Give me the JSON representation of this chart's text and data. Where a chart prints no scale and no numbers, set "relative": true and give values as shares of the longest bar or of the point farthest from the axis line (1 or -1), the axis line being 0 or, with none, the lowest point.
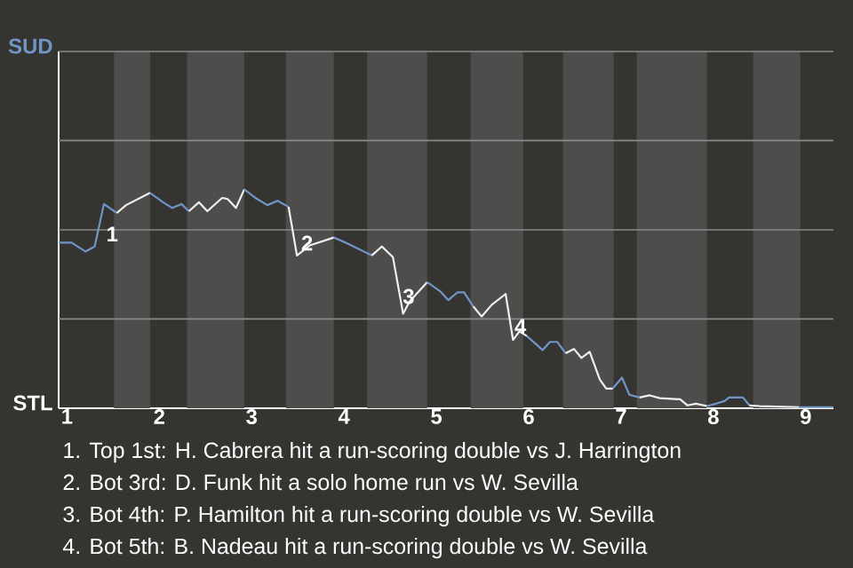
{
  "chart_data": {
    "type": "line",
    "relative": true,
    "xlim": [
      0.91,
      9.3
    ],
    "xticks": [
      {
        "value": 1,
        "label": "1"
      },
      {
        "value": 2,
        "label": "2"
      },
      {
        "value": 3,
        "label": "3"
      },
      {
        "value": 4,
        "label": "4"
      },
      {
        "value": 5,
        "label": "5"
      },
      {
        "value": 6,
        "label": "6"
      },
      {
        "value": 7,
        "label": "7"
      },
      {
        "value": 8,
        "label": "8"
      },
      {
        "value": 9,
        "label": "9"
      }
    ],
    "ref_lines": [
      {
        "axis": "y",
        "value": 0.408,
        "color": "#8a8a8a"
      },
      {
        "axis": "y",
        "value": 0.815,
        "color": "#8a8a8a"
      },
      {
        "axis": "y",
        "value": 1.223,
        "color": "#8a8a8a"
      },
      {
        "axis": "y",
        "value": 1.63,
        "color": "#8a8a8a"
      }
    ],
    "bands": [
      {
        "axis": "x",
        "from": 1.51,
        "to": 1.9,
        "color": "#4e4d4b"
      },
      {
        "axis": "x",
        "from": 2.3,
        "to": 2.92,
        "color": "#4e4d4b"
      },
      {
        "axis": "x",
        "from": 3.37,
        "to": 3.89,
        "color": "#4e4d4b"
      },
      {
        "axis": "x",
        "from": 4.25,
        "to": 4.9,
        "color": "#4e4d4b"
      },
      {
        "axis": "x",
        "from": 5.37,
        "to": 5.94,
        "color": "#4e4d4b"
      },
      {
        "axis": "x",
        "from": 6.37,
        "to": 6.92,
        "color": "#4e4d4b"
      },
      {
        "axis": "x",
        "from": 7.17,
        "to": 7.93,
        "color": "#4e4d4b"
      },
      {
        "axis": "x",
        "from": 8.43,
        "to": 8.94,
        "color": "#4e4d4b"
      }
    ],
    "series": [
      {
        "color": "#7096c8",
        "x": [
          0.91,
          1.05,
          1.2,
          1.3,
          1.4,
          1.54
        ],
        "values": [
          0.757,
          0.757,
          0.716,
          0.739,
          0.933,
          0.892
        ]
      },
      {
        "color": "#f0f0f0",
        "x": [
          1.54,
          1.64,
          1.9
        ],
        "values": [
          0.892,
          0.928,
          0.984
        ]
      },
      {
        "color": "#7096c8",
        "x": [
          1.9,
          2.04,
          2.14,
          2.24,
          2.32
        ],
        "values": [
          0.984,
          0.941,
          0.915,
          0.933,
          0.9
        ]
      },
      {
        "color": "#f0f0f0",
        "x": [
          2.32,
          2.43,
          2.52,
          2.68,
          2.74,
          2.83,
          2.92
        ],
        "values": [
          0.9,
          0.941,
          0.9,
          0.961,
          0.956,
          0.915,
          1
        ]
      },
      {
        "color": "#7096c8",
        "x": [
          2.92,
          3.04,
          3.17,
          3.28,
          3.4
        ],
        "values": [
          1,
          0.961,
          0.928,
          0.948,
          0.92
        ]
      },
      {
        "color": "#f0f0f0",
        "x": [
          3.4,
          3.49,
          3.63,
          3.89
        ],
        "values": [
          0.92,
          0.698,
          0.744,
          0.78
        ]
      },
      {
        "color": "#7096c8",
        "x": [
          3.89,
          4.04,
          4.3
        ],
        "values": [
          0.78,
          0.752,
          0.698
        ]
      },
      {
        "color": "#f0f0f0",
        "x": [
          4.3,
          4.41,
          4.53,
          4.64,
          4.71,
          4.9
        ],
        "values": [
          0.698,
          0.739,
          0.69,
          0.432,
          0.488,
          0.576
        ]
      },
      {
        "color": "#7096c8",
        "x": [
          4.9,
          5.04,
          5.13,
          5.23,
          5.3,
          5.4
        ],
        "values": [
          0.576,
          0.535,
          0.494,
          0.53,
          0.53,
          0.465
        ]
      },
      {
        "color": "#f0f0f0",
        "x": [
          5.4,
          5.49,
          5.6,
          5.75,
          5.83,
          5.9,
          5.98
        ],
        "values": [
          0.465,
          0.419,
          0.473,
          0.522,
          0.312,
          0.351,
          0.33
        ]
      },
      {
        "color": "#7096c8",
        "x": [
          5.98,
          6.15,
          6.23,
          6.31,
          6.4
        ],
        "values": [
          0.33,
          0.266,
          0.303,
          0.303,
          0.251
        ]
      },
      {
        "color": "#f0f0f0",
        "x": [
          6.4,
          6.49,
          6.57,
          6.66,
          6.77,
          6.84,
          6.91
        ],
        "values": [
          0.251,
          0.271,
          0.23,
          0.258,
          0.131,
          0.09,
          0.09
        ]
      },
      {
        "color": "#7096c8",
        "x": [
          6.91,
          7.01,
          7.09,
          7.2
        ],
        "values": [
          0.09,
          0.14,
          0.062,
          0.049
        ]
      },
      {
        "color": "#f0f0f0",
        "x": [
          7.2,
          7.31,
          7.42,
          7.64,
          7.72,
          7.81,
          7.93
        ],
        "values": [
          0.049,
          0.059,
          0.046,
          0.041,
          0.013,
          0.021,
          0.01
        ]
      },
      {
        "color": "#7096c8",
        "x": [
          7.93,
          8.03,
          8.12,
          8.17,
          8.32,
          8.39
        ],
        "values": [
          0.01,
          0.021,
          0.033,
          0.049,
          0.049,
          0.013
        ]
      },
      {
        "color": "#f0f0f0",
        "x": [
          8.39,
          8.5,
          8.93
        ],
        "values": [
          0.013,
          0.01,
          0.005
        ]
      },
      {
        "color": "#7096c8",
        "x": [
          8.93,
          9.3
        ],
        "values": [
          0.005,
          0.005
        ]
      }
    ],
    "annotations": [
      {
        "text": "1",
        "x": 1.49,
        "y": 0.796
      },
      {
        "text": "2",
        "x": 3.6,
        "y": 0.755
      },
      {
        "text": "3",
        "x": 4.7,
        "y": 0.511
      },
      {
        "text": "4",
        "x": 5.91,
        "y": 0.374
      },
      "SUD",
      "STL",
      "1. Top 1st: H. Cabrera hit a run-scoring double vs J. Harrington",
      "2. Bot 3rd: D. Funk hit a solo home run vs W. Sevilla",
      "3. Bot 4th: P. Hamilton hit a run-scoring double vs W. Sevilla",
      "4. Bot 5th: B. Nadeau hit a run-scoring double vs W. Sevilla"
    ]
  }
}
